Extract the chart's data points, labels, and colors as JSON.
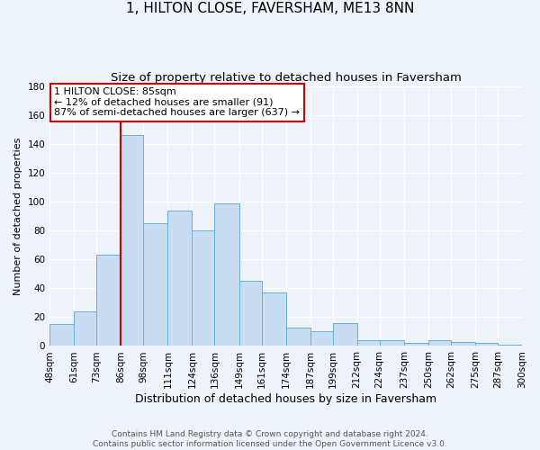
{
  "title": "1, HILTON CLOSE, FAVERSHAM, ME13 8NN",
  "subtitle": "Size of property relative to detached houses in Faversham",
  "xlabel": "Distribution of detached houses by size in Faversham",
  "ylabel": "Number of detached properties",
  "bin_labels": [
    "48sqm",
    "61sqm",
    "73sqm",
    "86sqm",
    "98sqm",
    "111sqm",
    "124sqm",
    "136sqm",
    "149sqm",
    "161sqm",
    "174sqm",
    "187sqm",
    "199sqm",
    "212sqm",
    "224sqm",
    "237sqm",
    "250sqm",
    "262sqm",
    "275sqm",
    "287sqm",
    "300sqm"
  ],
  "bin_edges": [
    48,
    61,
    73,
    86,
    98,
    111,
    124,
    136,
    149,
    161,
    174,
    187,
    199,
    212,
    224,
    237,
    250,
    262,
    275,
    287,
    300
  ],
  "bar_values": [
    15,
    24,
    63,
    146,
    85,
    94,
    80,
    99,
    45,
    37,
    13,
    10,
    16,
    4,
    4,
    2,
    4,
    3,
    2,
    1
  ],
  "bar_color": "#c9ddf2",
  "bar_edge_color": "#6baed6",
  "vline_x": 86,
  "vline_color": "#cc0000",
  "ylim": [
    0,
    180
  ],
  "yticks": [
    0,
    20,
    40,
    60,
    80,
    100,
    120,
    140,
    160,
    180
  ],
  "annotation_title": "1 HILTON CLOSE: 85sqm",
  "annotation_line1": "← 12% of detached houses are smaller (91)",
  "annotation_line2": "87% of semi-detached houses are larger (637) →",
  "annotation_box_color": "#cc0000",
  "footer_line1": "Contains HM Land Registry data © Crown copyright and database right 2024.",
  "footer_line2": "Contains public sector information licensed under the Open Government Licence v3.0.",
  "background_color": "#eef2f9",
  "grid_color": "#ffffff",
  "title_fontsize": 11,
  "subtitle_fontsize": 9.5,
  "xlabel_fontsize": 9,
  "ylabel_fontsize": 8,
  "tick_fontsize": 7.5,
  "annotation_fontsize": 8,
  "footer_fontsize": 6.5
}
